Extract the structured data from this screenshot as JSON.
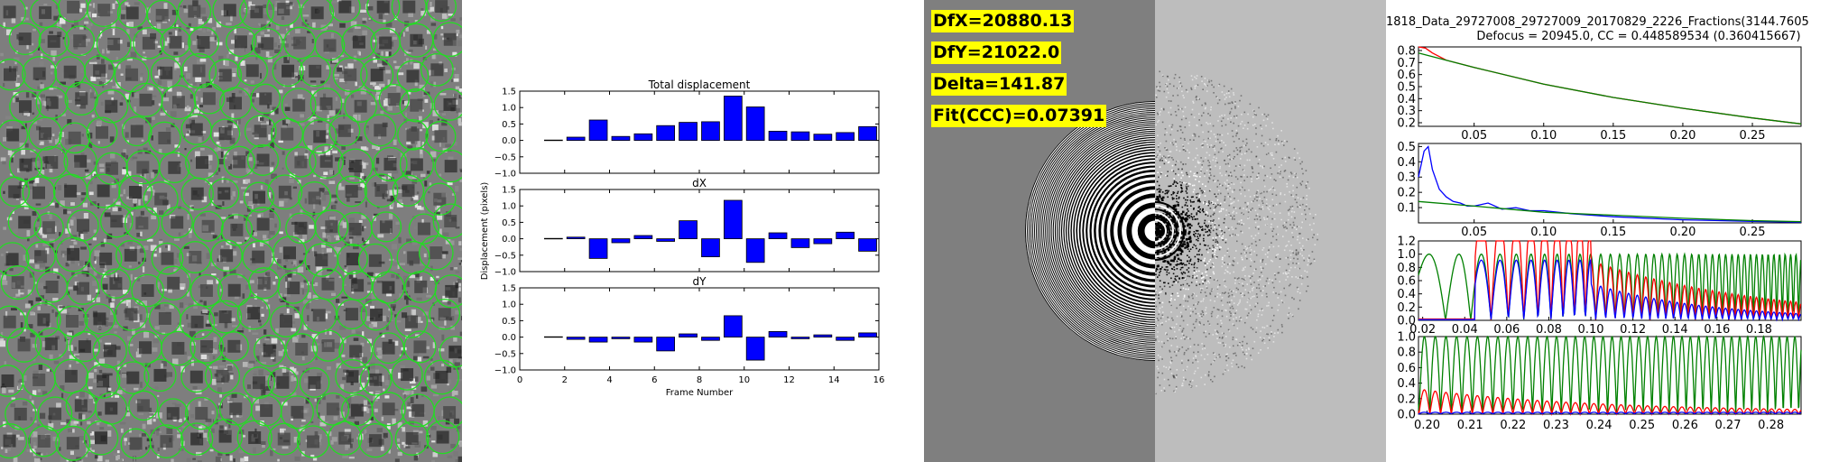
{
  "micrograph": {
    "particle_color": "#22dd22"
  },
  "drift_plot": {
    "ylabel": "Displacement (pixels)",
    "xlabel": "Frame Number",
    "bar_color": "#0000ff",
    "x_ticks": [
      "0",
      "2",
      "4",
      "6",
      "8",
      "10",
      "12",
      "14",
      "16"
    ],
    "y_ticks": [
      "1.5",
      "1.0",
      "0.5",
      "0.0",
      "−0.5",
      "−1.0"
    ]
  },
  "ctf_panel": {
    "labels": [
      "DfX=20880.13",
      "DfY=21022.0",
      "Delta=141.87",
      "Fit(CCC)=0.07391"
    ],
    "label_bg": "#ffff00"
  },
  "fit_panel": {
    "title_line1": "1818_Data_29727008_29727009_20170829_2226_Fractions(3144.7605",
    "title_line2": "Defocus = 20945.0, CC = 0.448589534 (0.360415667)",
    "colors": {
      "red": "#ff0000",
      "blue": "#0000ff",
      "green": "#008000"
    }
  },
  "chart_data": [
    {
      "type": "bar",
      "title": "Total displacement",
      "x": [
        1,
        2,
        3,
        4,
        5,
        6,
        7,
        8,
        9,
        10,
        11,
        12,
        13,
        14,
        15
      ],
      "values": [
        0.01,
        0.1,
        0.62,
        0.12,
        0.2,
        0.45,
        0.55,
        0.57,
        1.35,
        1.02,
        0.28,
        0.26,
        0.19,
        0.24,
        0.42
      ],
      "xlim": [
        0,
        16
      ],
      "ylim": [
        -1.0,
        1.5
      ],
      "xlabel": "",
      "ylabel": "Displacement (pixels)",
      "grid": false
    },
    {
      "type": "bar",
      "title": "dX",
      "x": [
        1,
        2,
        3,
        4,
        5,
        6,
        7,
        8,
        9,
        10,
        11,
        12,
        13,
        14,
        15
      ],
      "values": [
        0.01,
        0.05,
        -0.6,
        -0.12,
        0.1,
        -0.08,
        0.55,
        -0.55,
        1.17,
        -0.72,
        0.18,
        -0.27,
        -0.15,
        0.2,
        -0.38
      ],
      "xlim": [
        0,
        16
      ],
      "ylim": [
        -1.0,
        1.5
      ],
      "xlabel": "",
      "ylabel": "Displacement (pixels)",
      "grid": false
    },
    {
      "type": "bar",
      "title": "dY",
      "x": [
        1,
        2,
        3,
        4,
        5,
        6,
        7,
        8,
        9,
        10,
        11,
        12,
        13,
        14,
        15
      ],
      "values": [
        0.01,
        -0.07,
        -0.15,
        -0.05,
        -0.15,
        -0.42,
        0.1,
        -0.1,
        0.65,
        -0.7,
        0.17,
        -0.05,
        0.07,
        -0.1,
        0.13
      ],
      "xlim": [
        0,
        16
      ],
      "ylim": [
        -1.0,
        1.5
      ],
      "xlabel": "Frame Number",
      "ylabel": "Displacement (pixels)",
      "grid": false
    },
    {
      "type": "line",
      "title": "1818_Data_29727008_29727009_20170829_2226_Fractions(3144.7605",
      "subtitle": "Defocus = 20945.0, CC = 0.448589534 (0.360415667)",
      "x_ticks": [
        "0.05",
        "0.10",
        "0.15",
        "0.20",
        "0.25"
      ],
      "y_ticks": [
        "0.8",
        "0.7",
        "0.6",
        "0.5",
        "0.4",
        "0.3",
        "0.2"
      ],
      "xlim": [
        0.01,
        0.285
      ],
      "ylim": [
        0.17,
        0.83
      ],
      "series": [
        {
          "color": "red",
          "points": [
            [
              0.01,
              0.83
            ],
            [
              0.015,
              0.82
            ],
            [
              0.02,
              0.78
            ],
            [
              0.03,
              0.72
            ],
            [
              0.05,
              0.66
            ],
            [
              0.1,
              0.52
            ],
            [
              0.15,
              0.41
            ],
            [
              0.2,
              0.32
            ],
            [
              0.25,
              0.24
            ],
            [
              0.285,
              0.19
            ]
          ]
        },
        {
          "color": "green",
          "points": [
            [
              0.01,
              0.78
            ],
            [
              0.02,
              0.75
            ],
            [
              0.03,
              0.72
            ],
            [
              0.05,
              0.66
            ],
            [
              0.1,
              0.52
            ],
            [
              0.15,
              0.41
            ],
            [
              0.2,
              0.32
            ],
            [
              0.25,
              0.24
            ],
            [
              0.285,
              0.19
            ]
          ]
        }
      ]
    },
    {
      "type": "line",
      "x_ticks": [
        "0.05",
        "0.10",
        "0.15",
        "0.20",
        "0.25"
      ],
      "y_ticks": [
        "0.5",
        "0.4",
        "0.3",
        "0.2",
        "0.1"
      ],
      "xlim": [
        0.01,
        0.285
      ],
      "ylim": [
        0.0,
        0.52
      ],
      "series": [
        {
          "color": "blue",
          "points": [
            [
              0.01,
              0.3
            ],
            [
              0.014,
              0.47
            ],
            [
              0.017,
              0.5
            ],
            [
              0.02,
              0.35
            ],
            [
              0.025,
              0.22
            ],
            [
              0.03,
              0.17
            ],
            [
              0.035,
              0.14
            ],
            [
              0.04,
              0.13
            ],
            [
              0.045,
              0.11
            ],
            [
              0.05,
              0.11
            ],
            [
              0.06,
              0.13
            ],
            [
              0.07,
              0.09
            ],
            [
              0.08,
              0.1
            ],
            [
              0.09,
              0.08
            ],
            [
              0.1,
              0.08
            ],
            [
              0.12,
              0.06
            ],
            [
              0.15,
              0.04
            ],
            [
              0.2,
              0.02
            ],
            [
              0.25,
              0.01
            ],
            [
              0.285,
              0.005
            ]
          ]
        },
        {
          "color": "green",
          "points": [
            [
              0.01,
              0.14
            ],
            [
              0.05,
              0.11
            ],
            [
              0.1,
              0.07
            ],
            [
              0.15,
              0.05
            ],
            [
              0.2,
              0.03
            ],
            [
              0.25,
              0.015
            ],
            [
              0.285,
              0.008
            ]
          ]
        }
      ]
    },
    {
      "type": "line",
      "x_ticks": [
        "0.02",
        "0.04",
        "0.06",
        "0.08",
        "0.10",
        "0.12",
        "0.14",
        "0.16",
        "0.18"
      ],
      "y_ticks": [
        "1.2",
        "1.0",
        "0.8",
        "0.6",
        "0.4",
        "0.2",
        "0.0"
      ],
      "xlim": [
        0.018,
        0.2
      ],
      "ylim": [
        0.0,
        1.2
      ],
      "series": [
        {
          "color": "green",
          "description": "model oscillation |sin| with increasing frequency, amplitude 1.0"
        },
        {
          "color": "red",
          "description": "experimental CTF, peaks clipped above 1.2 near 0.04–0.10"
        },
        {
          "color": "blue",
          "description": "experimental CTF normalized, amplitude 0.3–0.9"
        }
      ]
    },
    {
      "type": "line",
      "x_ticks": [
        "0.20",
        "0.21",
        "0.22",
        "0.23",
        "0.24",
        "0.25",
        "0.26",
        "0.27",
        "0.28"
      ],
      "y_ticks": [
        "1.0",
        "0.8",
        "0.6",
        "0.4",
        "0.2",
        "0.0"
      ],
      "xlim": [
        0.198,
        0.287
      ],
      "ylim": [
        0.0,
        1.0
      ],
      "series": [
        {
          "color": "green",
          "description": "model oscillation, amplitude 1.0, about 22 cycles"
        },
        {
          "color": "red",
          "description": "experimental CTF, small peaks 0.1–0.3"
        },
        {
          "color": "blue",
          "description": "experimental CTF normalized, near 0.02"
        }
      ]
    }
  ]
}
